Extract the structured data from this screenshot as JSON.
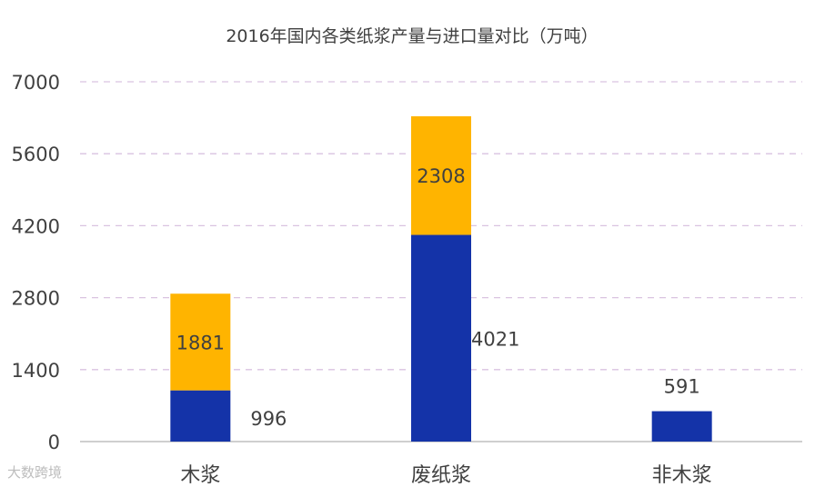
{
  "chart_data": {
    "type": "bar",
    "stacked": true,
    "title": "2016年国内各类纸浆产量与进口量对比（万吨）",
    "categories": [
      "木浆",
      "废纸浆",
      "非木浆"
    ],
    "series": [
      {
        "values": [
          996,
          4021,
          591
        ],
        "color": "#1433a8",
        "label_position": "right"
      },
      {
        "values": [
          1881,
          2308,
          0
        ],
        "color": "#ffb400",
        "label_position": "inside"
      }
    ],
    "ylim": [
      0,
      7000
    ],
    "yticks": [
      0,
      1400,
      2800,
      4200,
      5600,
      7000
    ],
    "grid": true,
    "xlabel": "",
    "ylabel": ""
  },
  "watermark": "大数跨境"
}
